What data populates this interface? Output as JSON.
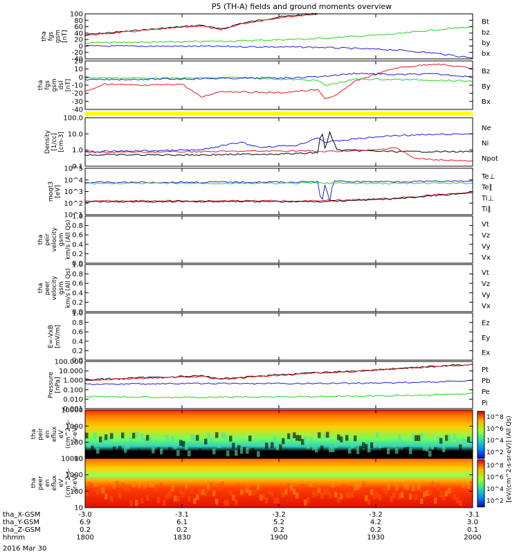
{
  "title": "P5 (TH-A) fields and ground moments overview",
  "date_label": "2016 Mar 30",
  "colors": {
    "black": "#000000",
    "red": "#e8141c",
    "green": "#21d21f",
    "blue": "#1a1ae6",
    "yellow": "#ffff00"
  },
  "time_axis": {
    "rows": [
      {
        "name": "tha_X-GSM",
        "values": [
          "-3.0",
          "-3.1",
          "-3.2",
          "-3.2",
          "-3.1"
        ]
      },
      {
        "name": "tha_Y-GSM",
        "values": [
          "6.9",
          "6.1",
          "5.2",
          "4.2",
          "3.0"
        ]
      },
      {
        "name": "tha_Z-GSM",
        "values": [
          "0.2",
          "0.2",
          "0.2",
          "0.2",
          "0.1"
        ]
      },
      {
        "name": "hhmm",
        "values": [
          "1800",
          "1830",
          "1900",
          "1930",
          "2000"
        ]
      }
    ]
  },
  "chart_data": [
    {
      "type": "line",
      "id": "fgs_mag",
      "ylabel": [
        "tha",
        "fgs",
        "gsm",
        "[nT]"
      ],
      "ticks": [
        "100",
        "80",
        "60",
        "40",
        "20",
        "0",
        "-20",
        "-40"
      ],
      "ylim": [
        -40,
        100
      ],
      "legend": [
        {
          "text": "Bt",
          "color": "#000000"
        },
        {
          "text": "bz",
          "color": "#e8141c"
        },
        {
          "text": "by",
          "color": "#21d21f"
        },
        {
          "text": "bx",
          "color": "#1a1ae6"
        }
      ],
      "series": [
        {
          "color": "#000000",
          "x": [
            0,
            0.1,
            0.2,
            0.3,
            0.35,
            0.4,
            0.5,
            0.6
          ],
          "y": [
            35,
            45,
            55,
            65,
            52,
            70,
            90,
            102
          ]
        },
        {
          "color": "#e8141c",
          "x": [
            0,
            0.1,
            0.2,
            0.3,
            0.35,
            0.4,
            0.5,
            0.6
          ],
          "y": [
            33,
            43,
            53,
            63,
            49,
            68,
            88,
            100
          ]
        },
        {
          "color": "#21d21f",
          "x": [
            0,
            0.2,
            0.4,
            0.6,
            0.8,
            0.9,
            1
          ],
          "y": [
            10,
            12,
            16,
            23,
            37,
            50,
            60
          ]
        },
        {
          "color": "#1a1ae6",
          "x": [
            0,
            0.3,
            0.6,
            0.8,
            0.9,
            1
          ],
          "y": [
            0,
            -1,
            -4,
            -12,
            -22,
            -37
          ]
        }
      ]
    },
    {
      "type": "line",
      "id": "fgs_gse",
      "ylabel": [
        "tha",
        "fgs",
        "gsm",
        "dsl",
        "[nT]"
      ],
      "ticks": [
        "20",
        "10",
        "0",
        "-10",
        "-20",
        "-30",
        "-40"
      ],
      "ylim": [
        -45,
        22
      ],
      "legend": [
        {
          "text": "Bz",
          "color": "#e8141c"
        },
        {
          "text": "By",
          "color": "#21d21f"
        },
        {
          "text": "Bx",
          "color": "#1a1ae6"
        }
      ],
      "series": [
        {
          "color": "#e8141c",
          "x": [
            0,
            0.05,
            0.15,
            0.25,
            0.3,
            0.35,
            0.5,
            0.6,
            0.62,
            0.65,
            0.7,
            0.8,
            0.9,
            1
          ],
          "y": [
            -20,
            -10,
            -12,
            -10,
            -28,
            -20,
            -22,
            -18,
            -30,
            -25,
            -5,
            12,
            18,
            12
          ]
        },
        {
          "color": "#21d21f",
          "x": [
            0,
            0.2,
            0.4,
            0.6,
            0.62,
            0.7,
            0.85,
            1
          ],
          "y": [
            -1,
            -2,
            -1,
            -5,
            -12,
            -3,
            -4,
            -6
          ]
        },
        {
          "color": "#1a1ae6",
          "x": [
            0,
            0.2,
            0.4,
            0.55,
            0.62,
            0.7,
            0.8,
            0.9,
            1
          ],
          "y": [
            -4,
            -3,
            -2,
            -1,
            1,
            5,
            3,
            4,
            0
          ]
        }
      ]
    },
    {
      "type": "line",
      "id": "density",
      "ylabel": [
        "Density",
        "[1/cc]",
        "[cm-3]"
      ],
      "ticks": [
        "100.0",
        "10.0",
        "1.0",
        "0.1"
      ],
      "ylim": [
        0.1,
        100
      ],
      "scale": "log",
      "legend": [
        {
          "text": "Ne",
          "color": "#e8141c"
        },
        {
          "text": "Ni",
          "color": "#000000"
        },
        {
          "text": "Npot",
          "color": "#1a1ae6"
        }
      ],
      "series": [
        {
          "color": "#000000",
          "x": [
            0,
            0.3,
            0.55,
            0.6,
            0.61,
            0.62,
            0.63,
            0.65,
            0.8,
            1
          ],
          "y": [
            0.5,
            0.5,
            0.6,
            0.7,
            20,
            0.8,
            15,
            1,
            0.8,
            0.8
          ]
        },
        {
          "color": "#e8141c",
          "x": [
            0,
            0.3,
            0.55,
            0.62,
            0.75,
            0.8,
            0.85,
            1
          ],
          "y": [
            0.7,
            0.8,
            0.9,
            0.8,
            1,
            1.5,
            0.3,
            0.2
          ]
        },
        {
          "color": "#1a1ae6",
          "x": [
            0,
            0.3,
            0.4,
            0.45,
            0.55,
            0.6,
            0.62,
            0.7,
            0.8,
            0.9,
            1
          ],
          "y": [
            0.8,
            1,
            3,
            1.5,
            2,
            6,
            3,
            5,
            8,
            9,
            10
          ]
        }
      ]
    },
    {
      "type": "line",
      "id": "temperature",
      "ylabel": [
        "moqt3",
        "[eV]"
      ],
      "ticks": [
        "10^5",
        "10^4",
        "10^3",
        "10^2",
        "10^1"
      ],
      "ylim": [
        10,
        100000
      ],
      "scale": "log",
      "legend": [
        {
          "text": "Te⊥",
          "color": "#e8141c"
        },
        {
          "text": "Te∥",
          "color": "#000000"
        },
        {
          "text": "Ti⊥",
          "color": "#1a1ae6"
        },
        {
          "text": "Ti∥",
          "color": "#21d21f"
        }
      ],
      "series": [
        {
          "color": "#1a1ae6",
          "x": [
            0,
            0.55,
            0.6,
            0.61,
            0.62,
            0.63,
            0.64,
            0.7,
            1
          ],
          "y": [
            6000,
            6500,
            7000,
            60,
            7000,
            90,
            7500,
            7000,
            7500
          ]
        },
        {
          "color": "#21d21f",
          "x": [
            0,
            0.55,
            0.6,
            0.7,
            0.8,
            1
          ],
          "y": [
            5000,
            5000,
            5500,
            5000,
            5000,
            5200
          ]
        },
        {
          "color": "#e8141c",
          "x": [
            0,
            0.4,
            0.6,
            0.7,
            0.8,
            0.9,
            1
          ],
          "y": [
            150,
            160,
            150,
            200,
            250,
            500,
            900
          ]
        },
        {
          "color": "#000000",
          "x": [
            0,
            0.4,
            0.6,
            0.7,
            0.8,
            0.9,
            1
          ],
          "y": [
            130,
            140,
            130,
            180,
            230,
            450,
            800
          ]
        }
      ]
    },
    {
      "type": "line",
      "id": "peir_velocity",
      "ylabel": [
        "tha",
        "peir",
        "velocity",
        "gsm",
        "km/s (All Qs)"
      ],
      "ticks": [
        "1.0",
        "0.8",
        "0.6",
        "0.4",
        "0.2",
        "0.0"
      ],
      "ylim": [
        0,
        1
      ],
      "legend": [
        {
          "text": "Vt",
          "color": "#000000"
        },
        {
          "text": "Vz",
          "color": "#e8141c"
        },
        {
          "text": "Vy",
          "color": "#21d21f"
        },
        {
          "text": "Vx",
          "color": "#1a1ae6"
        }
      ],
      "series": []
    },
    {
      "type": "line",
      "id": "peer_velocity",
      "ylabel": [
        "tha",
        "peer",
        "velocity",
        "gsm",
        "km/s (All Qs)"
      ],
      "ticks": [
        "1.0",
        "0.8",
        "0.6",
        "0.4",
        "0.2",
        "0.0"
      ],
      "ylim": [
        0,
        1
      ],
      "legend": [
        {
          "text": "Vt",
          "color": "#000000"
        },
        {
          "text": "Vz",
          "color": "#e8141c"
        },
        {
          "text": "Vy",
          "color": "#21d21f"
        },
        {
          "text": "Vx",
          "color": "#1a1ae6"
        }
      ],
      "series": []
    },
    {
      "type": "line",
      "id": "efield",
      "ylabel": [
        "E=-VxB",
        "[mV/m]"
      ],
      "ticks": [
        "1.0",
        "0.8",
        "0.6",
        "0.4",
        "0.2",
        "0.0"
      ],
      "ylim": [
        0,
        1
      ],
      "legend": [
        {
          "text": "Ez",
          "color": "#e8141c"
        },
        {
          "text": "Ey",
          "color": "#21d21f"
        },
        {
          "text": "Ex",
          "color": "#1a1ae6"
        }
      ],
      "series": []
    },
    {
      "type": "line",
      "id": "pressure",
      "ylabel": [
        "Pressure",
        "[nPa]"
      ],
      "ticks": [
        "100.000",
        "10.000",
        "1.000",
        "0.100",
        "0.010",
        "0.001"
      ],
      "ylim": [
        0.001,
        100
      ],
      "scale": "log",
      "legend": [
        {
          "text": "Pt",
          "color": "#000000"
        },
        {
          "text": "Pb",
          "color": "#e8141c"
        },
        {
          "text": "Pe",
          "color": "#21d21f"
        },
        {
          "text": "Pi",
          "color": "#1a1ae6"
        }
      ],
      "series": [
        {
          "color": "#000000",
          "x": [
            0,
            0.3,
            0.35,
            0.5,
            0.7,
            0.9,
            1
          ],
          "y": [
            1.2,
            3,
            1.5,
            4,
            10,
            30,
            50
          ]
        },
        {
          "color": "#e8141c",
          "x": [
            0,
            0.3,
            0.35,
            0.5,
            0.7,
            0.9,
            1
          ],
          "y": [
            1.0,
            2.7,
            1.2,
            3.6,
            9,
            28,
            48
          ]
        },
        {
          "color": "#1a1ae6",
          "x": [
            0,
            0.3,
            0.5,
            0.7,
            0.85,
            1
          ],
          "y": [
            0.4,
            0.45,
            0.45,
            0.5,
            0.6,
            0.9
          ]
        },
        {
          "color": "#21d21f",
          "x": [
            0,
            0.3,
            0.5,
            0.7,
            0.85,
            1
          ],
          "y": [
            0.02,
            0.015,
            0.018,
            0.02,
            0.025,
            0.04
          ]
        }
      ]
    },
    {
      "type": "heatmap",
      "id": "peir_spec",
      "ylabel": [
        "tha",
        "peir",
        "en",
        "eflux",
        "eV",
        "(cm^2-s-",
        "sr-eV)"
      ],
      "ticks": [
        "10000",
        "1000",
        "100",
        "10"
      ]
    },
    {
      "type": "heatmap",
      "id": "peer_spec",
      "ylabel": [
        "tha",
        "peer",
        "en",
        "eflux",
        "eV",
        "(cm^2-s-",
        "sr-eV)"
      ],
      "ticks": [
        "10000",
        "1000",
        "100",
        "10"
      ]
    }
  ],
  "colorbar": {
    "label": "[eV/(cm^2-s-sr-eV)] (All Qs)",
    "upper": [
      "10^8",
      "10^6",
      "10^4",
      "10^2"
    ],
    "lower": [
      "10^8",
      "10^6",
      "10^4",
      "10^2"
    ]
  }
}
